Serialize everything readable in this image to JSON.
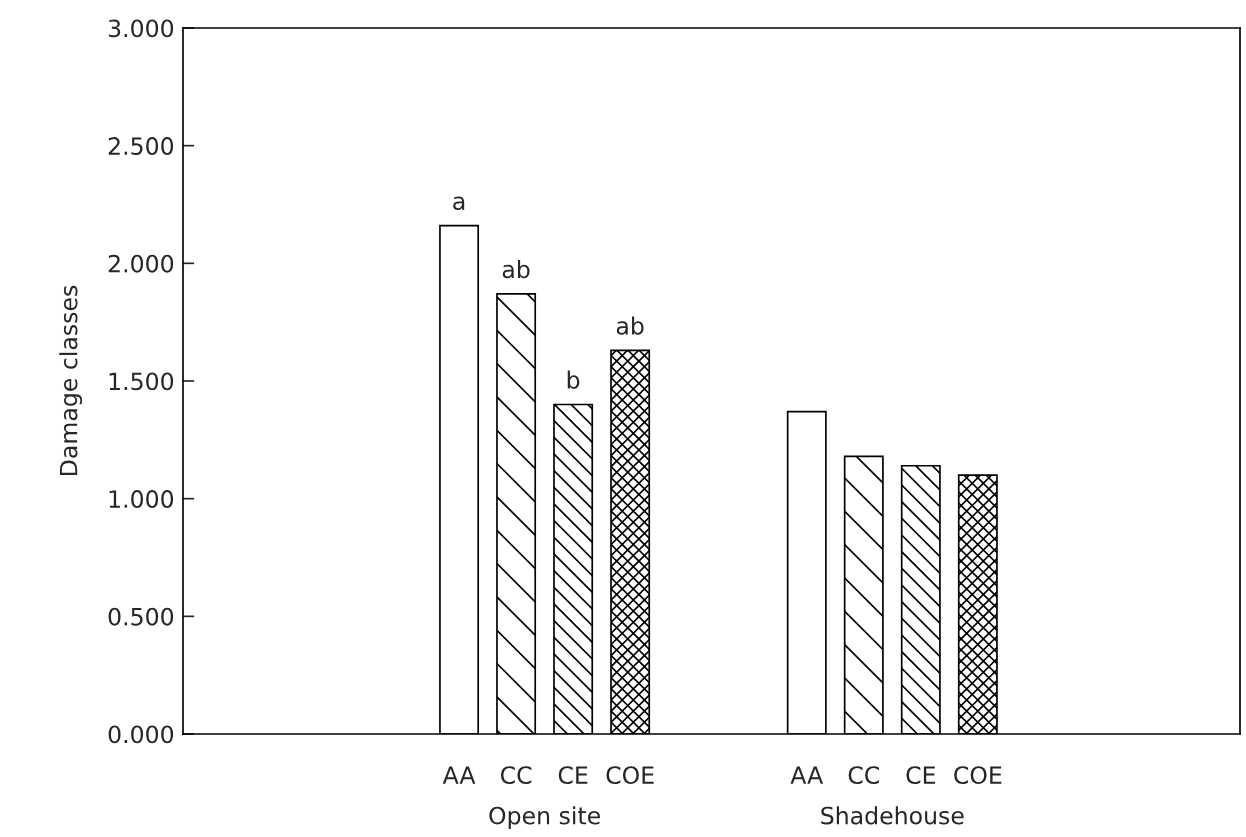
{
  "chart_data": {
    "type": "bar",
    "ylabel": "Damage classes",
    "categories": [
      "Open site",
      "Shadehouse"
    ],
    "series": [
      {
        "name": "AA",
        "color": "#ffffff",
        "values": [
          2.16,
          1.37
        ],
        "value_labels": [
          "a",
          null
        ]
      },
      {
        "name": "CC",
        "color": "#000000",
        "values": [
          1.87,
          1.18
        ],
        "value_labels": [
          "ab",
          null
        ]
      },
      {
        "name": "CE",
        "color": "#000000",
        "values": [
          1.4,
          1.14
        ],
        "value_labels": [
          "b",
          null
        ]
      },
      {
        "name": "COE",
        "color": "#000000",
        "values": [
          1.63,
          1.1
        ],
        "value_labels": [
          "ab",
          null
        ]
      }
    ],
    "ylim": [
      0,
      3
    ],
    "yticks": [
      {
        "value": 0,
        "label": "0.000"
      },
      {
        "value": 0.5,
        "label": "0.500"
      },
      {
        "value": 1,
        "label": "1.000"
      },
      {
        "value": 1.5,
        "label": "1.500"
      },
      {
        "value": 2,
        "label": "2.000"
      },
      {
        "value": 2.5,
        "label": "2.500"
      },
      {
        "value": 3,
        "label": "3.000"
      }
    ],
    "grid": false,
    "legend": false
  }
}
